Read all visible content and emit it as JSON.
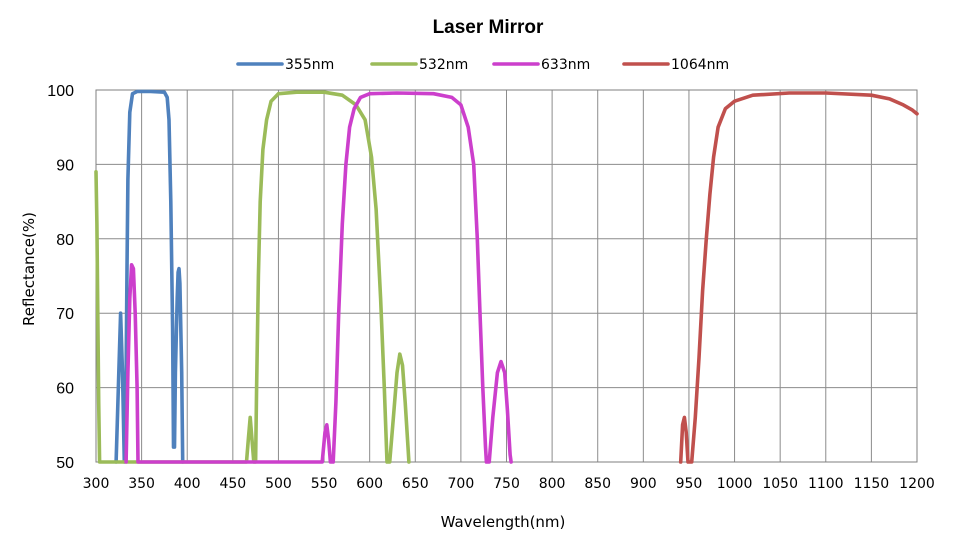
{
  "chart_data": {
    "type": "line",
    "title": "Laser Mirror",
    "xlabel": "Wavelength(nm)",
    "ylabel": "Reflectance(%)",
    "xlim": [
      300,
      1200
    ],
    "ylim": [
      50,
      100
    ],
    "x_ticks": [
      "300",
      "350",
      "400",
      "450",
      "500",
      "550",
      "600",
      "650",
      "700",
      "750",
      "800",
      "850",
      "900",
      "950",
      "1000",
      "1050",
      "1100",
      "1150",
      "1200"
    ],
    "y_ticks": [
      "50",
      "60",
      "70",
      "80",
      "90",
      "100"
    ],
    "grid": true,
    "legend_position": "top",
    "series": [
      {
        "name": "355nm",
        "color": "#4f81bd",
        "points": [
          [
            322,
            50
          ],
          [
            325,
            62
          ],
          [
            327,
            70
          ],
          [
            329,
            62
          ],
          [
            331,
            50
          ],
          [
            333,
            62
          ],
          [
            334,
            76
          ],
          [
            335,
            88
          ],
          [
            337,
            97
          ],
          [
            340,
            99.5
          ],
          [
            345,
            99.8
          ],
          [
            360,
            99.8
          ],
          [
            375,
            99.7
          ],
          [
            378,
            99
          ],
          [
            380,
            96
          ],
          [
            382,
            85
          ],
          [
            384,
            68
          ],
          [
            385,
            52
          ],
          [
            386,
            52
          ],
          [
            387,
            62
          ],
          [
            389,
            72
          ],
          [
            390,
            75.5
          ],
          [
            391,
            76
          ],
          [
            392,
            74
          ],
          [
            394,
            62
          ],
          [
            395,
            50
          ]
        ]
      },
      {
        "name": "532nm",
        "color": "#9bbb59",
        "points": [
          [
            300,
            89
          ],
          [
            301,
            82
          ],
          [
            302,
            70
          ],
          [
            303,
            58
          ],
          [
            304,
            50
          ],
          [
            465,
            50
          ],
          [
            467,
            53
          ],
          [
            469,
            56
          ],
          [
            471,
            53
          ],
          [
            473,
            50
          ],
          [
            475,
            50
          ],
          [
            476,
            60
          ],
          [
            478,
            75
          ],
          [
            480,
            85
          ],
          [
            483,
            92
          ],
          [
            487,
            96
          ],
          [
            492,
            98.5
          ],
          [
            500,
            99.5
          ],
          [
            520,
            99.7
          ],
          [
            550,
            99.7
          ],
          [
            570,
            99.3
          ],
          [
            585,
            98
          ],
          [
            595,
            96
          ],
          [
            602,
            91
          ],
          [
            607,
            84
          ],
          [
            612,
            72
          ],
          [
            616,
            60
          ],
          [
            619,
            50
          ],
          [
            622,
            50
          ],
          [
            626,
            56
          ],
          [
            630,
            62
          ],
          [
            633,
            64.5
          ],
          [
            636,
            63
          ],
          [
            639,
            58
          ],
          [
            642,
            52
          ],
          [
            643,
            50
          ]
        ]
      },
      {
        "name": "633nm",
        "color": "#cc3fcc",
        "points": [
          [
            333,
            50
          ],
          [
            335,
            62
          ],
          [
            337,
            72
          ],
          [
            339,
            76.5
          ],
          [
            341,
            76
          ],
          [
            343,
            70
          ],
          [
            345,
            60
          ],
          [
            346,
            50
          ],
          [
            548,
            50
          ],
          [
            551,
            54
          ],
          [
            553,
            55
          ],
          [
            555,
            53
          ],
          [
            557,
            50
          ],
          [
            560,
            50
          ],
          [
            563,
            58
          ],
          [
            566,
            70
          ],
          [
            570,
            82
          ],
          [
            574,
            90
          ],
          [
            578,
            95
          ],
          [
            583,
            97.5
          ],
          [
            590,
            99
          ],
          [
            600,
            99.5
          ],
          [
            630,
            99.6
          ],
          [
            670,
            99.5
          ],
          [
            690,
            99
          ],
          [
            700,
            98
          ],
          [
            708,
            95
          ],
          [
            714,
            90
          ],
          [
            718,
            80
          ],
          [
            721,
            70
          ],
          [
            724,
            60
          ],
          [
            727,
            52
          ],
          [
            728,
            50
          ],
          [
            731,
            50
          ],
          [
            735,
            56
          ],
          [
            740,
            62
          ],
          [
            744,
            63.5
          ],
          [
            748,
            62
          ],
          [
            751,
            57
          ],
          [
            754,
            51
          ],
          [
            755,
            50
          ]
        ]
      },
      {
        "name": "1064nm",
        "color": "#c0504d",
        "points": [
          [
            941,
            50
          ],
          [
            943,
            55
          ],
          [
            945,
            56
          ],
          [
            947,
            54
          ],
          [
            949,
            50
          ],
          [
            953,
            50
          ],
          [
            957,
            56
          ],
          [
            961,
            64
          ],
          [
            965,
            73
          ],
          [
            969,
            80
          ],
          [
            973,
            86
          ],
          [
            977,
            91
          ],
          [
            982,
            95
          ],
          [
            990,
            97.5
          ],
          [
            1000,
            98.5
          ],
          [
            1020,
            99.3
          ],
          [
            1060,
            99.6
          ],
          [
            1100,
            99.6
          ],
          [
            1150,
            99.3
          ],
          [
            1170,
            98.8
          ],
          [
            1185,
            98
          ],
          [
            1195,
            97.3
          ],
          [
            1200,
            96.8
          ]
        ]
      }
    ]
  }
}
